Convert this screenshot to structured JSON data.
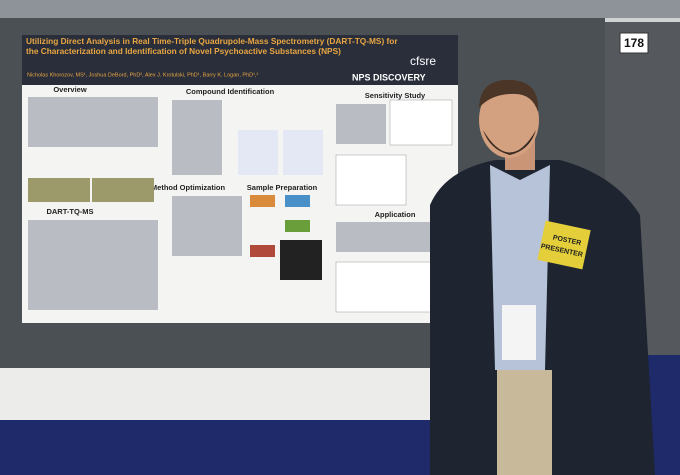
{
  "booth_number": "178",
  "poster": {
    "title": "Utilizing Direct Analysis in Real Time-Triple Quadrupole-Mass Spectrometry (DART-TQ-MS) for the Characterization and Identification of Novel Psychoactive Substances (NPS)",
    "authors": "Nicholas Khorozov, MS¹, Joshua DeBord, PhD², Alex J. Krotulski, PhD¹, Barry K. Logan, PhD¹,²",
    "logos": [
      "cfsre",
      "NPS DISCOVERY"
    ],
    "sections": [
      "Overview",
      "Compound Identification",
      "Sensitivity Study",
      "DART-TQ-MS",
      "Method Optimization",
      "Sample Preparation",
      "Application"
    ]
  },
  "badge": {
    "line1": "POSTER",
    "line2": "PRESENTER"
  }
}
